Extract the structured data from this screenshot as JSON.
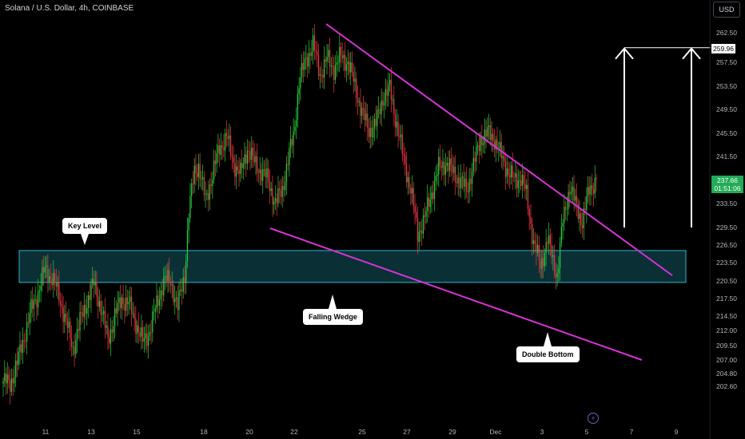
{
  "header": {
    "title": "Solana / U.S. Dollar, 4h, COINBASE",
    "currency": "USD"
  },
  "annotations": {
    "key_level": "Key Level",
    "falling_wedge": "Falling Wedge",
    "double_bottom": "Double Bottom"
  },
  "price_tags": {
    "target": "259.96",
    "last": "237.66",
    "countdown": "01:51:06"
  },
  "colors": {
    "up": "#26d13a",
    "down": "#f23645",
    "wedge": "#d633d6",
    "zone_fill": "#0c3840",
    "zone_border": "#2fb4c8"
  },
  "chart_data": {
    "type": "candlestick",
    "title": "Solana / U.S. Dollar, 4h, COINBASE",
    "ylim": [
      201.5,
      264.5
    ],
    "y_ticks": [
      "262.50",
      "259.96",
      "257.50",
      "253.50",
      "249.50",
      "245.50",
      "241.50",
      "237.66",
      "233.50",
      "229.50",
      "226.50",
      "223.50",
      "220.50",
      "217.50",
      "214.50",
      "212.00",
      "209.50",
      "207.00",
      "204.80",
      "202.60"
    ],
    "x_ticks": [
      "11",
      "13",
      "15",
      "18",
      "20",
      "22",
      "25",
      "27",
      "29",
      "Dec",
      "3",
      "5",
      "7",
      "9"
    ],
    "support_zone": [
      220.2,
      225.6
    ],
    "target_level": 259.96,
    "last_price": 237.66,
    "close_path": [
      [
        0,
        203.5
      ],
      [
        5,
        203.0
      ],
      [
        10,
        206.5
      ],
      [
        15,
        211.0
      ],
      [
        20,
        215.5
      ],
      [
        25,
        218.5
      ],
      [
        30,
        222.5
      ],
      [
        35,
        221.0
      ],
      [
        40,
        218.0
      ],
      [
        45,
        213.5
      ],
      [
        50,
        209.0
      ],
      [
        55,
        213.5
      ],
      [
        60,
        217.0
      ],
      [
        65,
        220.0
      ],
      [
        70,
        216.0
      ],
      [
        75,
        210.5
      ],
      [
        80,
        214.5
      ],
      [
        85,
        217.5
      ],
      [
        90,
        216.5
      ],
      [
        95,
        213.5
      ],
      [
        100,
        210.0
      ],
      [
        105,
        212.0
      ],
      [
        110,
        216.5
      ],
      [
        115,
        220.5
      ],
      [
        120,
        220.5
      ],
      [
        125,
        216.0
      ],
      [
        130,
        221.5
      ],
      [
        133,
        232.0
      ],
      [
        137,
        239.0
      ],
      [
        140,
        240.0
      ],
      [
        145,
        234.0
      ],
      [
        150,
        238.5
      ],
      [
        155,
        243.0
      ],
      [
        160,
        245.0
      ],
      [
        165,
        240.5
      ],
      [
        170,
        238.5
      ],
      [
        175,
        243.0
      ],
      [
        180,
        240.5
      ],
      [
        185,
        239.0
      ],
      [
        190,
        237.5
      ],
      [
        195,
        233.5
      ],
      [
        200,
        236.0
      ],
      [
        205,
        242.0
      ],
      [
        208,
        245.0
      ],
      [
        212,
        254.0
      ],
      [
        217,
        258.0
      ],
      [
        222,
        260.5
      ],
      [
        227,
        255.5
      ],
      [
        232,
        258.0
      ],
      [
        237,
        256.5
      ],
      [
        242,
        258.5
      ],
      [
        247,
        257.5
      ],
      [
        252,
        253.5
      ],
      [
        257,
        249.0
      ],
      [
        262,
        246.0
      ],
      [
        267,
        247.0
      ],
      [
        272,
        251.5
      ],
      [
        277,
        253.0
      ],
      [
        282,
        247.0
      ],
      [
        287,
        241.0
      ],
      [
        292,
        236.0
      ],
      [
        297,
        228.5
      ],
      [
        302,
        231.0
      ],
      [
        307,
        235.5
      ],
      [
        312,
        239.5
      ],
      [
        317,
        240.5
      ],
      [
        322,
        239.0
      ],
      [
        327,
        237.5
      ],
      [
        332,
        236.0
      ],
      [
        337,
        240.0
      ],
      [
        342,
        244.5
      ],
      [
        347,
        245.5
      ],
      [
        352,
        244.5
      ],
      [
        357,
        241.5
      ],
      [
        362,
        239.0
      ],
      [
        366,
        237.5
      ],
      [
        371,
        238.0
      ],
      [
        375,
        235.0
      ],
      [
        380,
        227.0
      ],
      [
        385,
        223.0
      ],
      [
        390,
        227.5
      ],
      [
        395,
        223.0
      ],
      [
        397,
        221.5
      ],
      [
        401,
        230.5
      ],
      [
        406,
        236.5
      ],
      [
        410,
        233.5
      ],
      [
        415,
        230.5
      ],
      [
        420,
        236.0
      ],
      [
        425,
        237.66
      ]
    ]
  }
}
